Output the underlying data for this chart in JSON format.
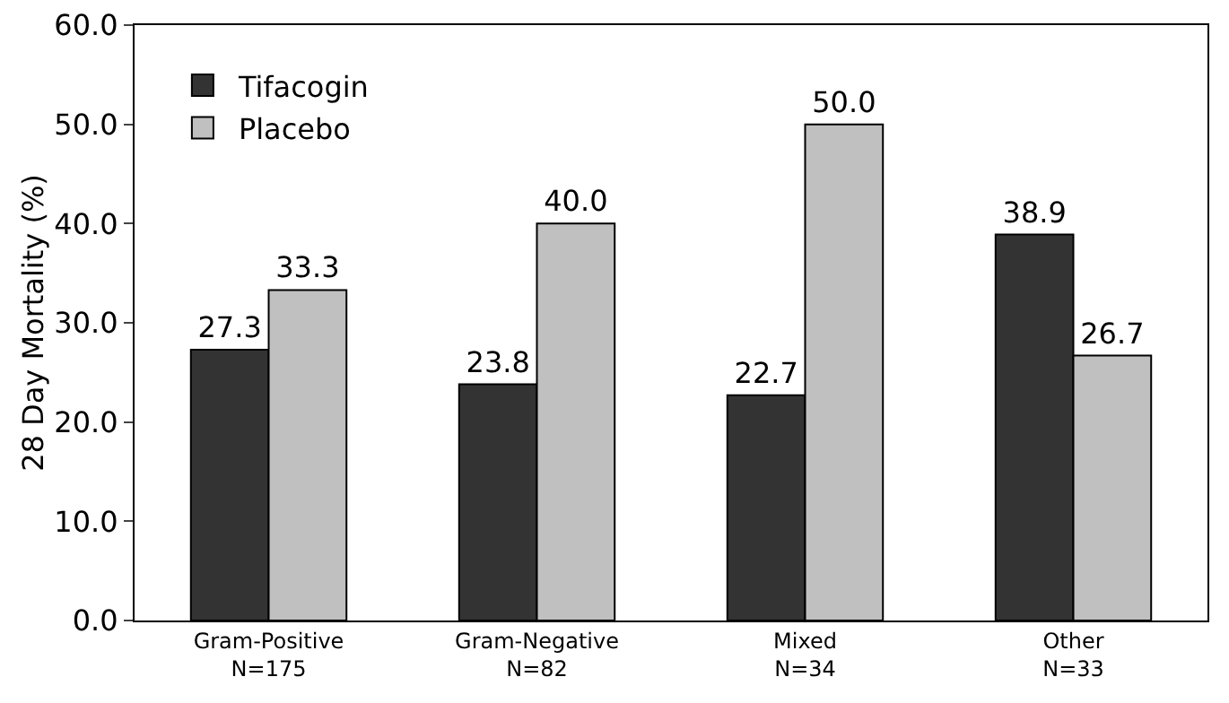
{
  "chart_data": {
    "type": "bar",
    "ylabel": "28 Day Mortality (%)",
    "categories": [
      "Gram-Positive\nN=175",
      "Gram-Negative\nN=82",
      "Mixed\nN=34",
      "Other\nN=33"
    ],
    "series": [
      {
        "name": "Tifacogin",
        "color": "#333333",
        "values": [
          27.3,
          23.8,
          22.7,
          38.9
        ],
        "value_labels": [
          "27.3",
          "23.8",
          "22.7",
          "38.9"
        ]
      },
      {
        "name": "Placebo",
        "color": "#c0c0c0",
        "values": [
          33.3,
          40.0,
          50.0,
          26.7
        ],
        "value_labels": [
          "33.3",
          "40.0",
          "50.0",
          "26.7"
        ]
      }
    ],
    "ylim": [
      0,
      60
    ],
    "yticks": [
      {
        "value": 0,
        "label": "0.0"
      },
      {
        "value": 10,
        "label": "10.0"
      },
      {
        "value": 20,
        "label": "20.0"
      },
      {
        "value": 30,
        "label": "30.0"
      },
      {
        "value": 40,
        "label": "40.0"
      },
      {
        "value": 50,
        "label": "50.0"
      },
      {
        "value": 60,
        "label": "60.0"
      }
    ],
    "grid": false,
    "legend": "top left"
  }
}
